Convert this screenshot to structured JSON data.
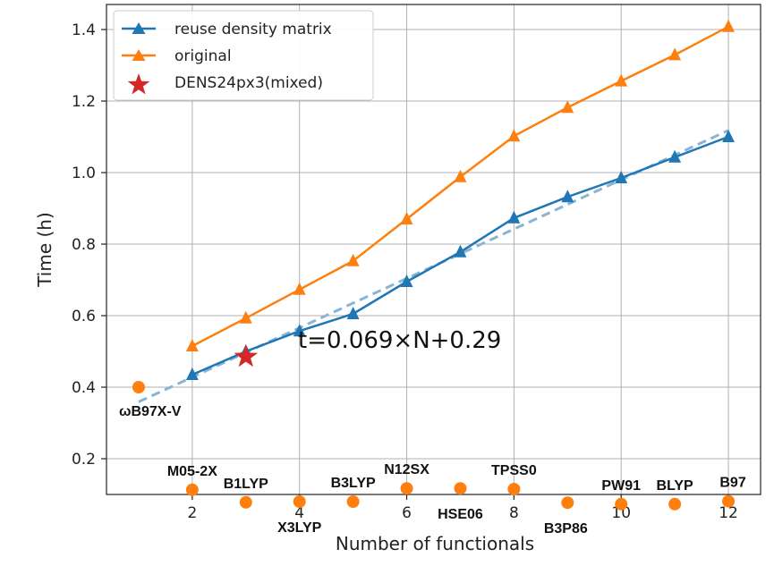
{
  "chart_data": {
    "type": "line",
    "xlabel": "Number of functionals",
    "ylabel": "Time (h)",
    "xlim": [
      0.4,
      12.6
    ],
    "ylim": [
      0.1,
      1.47
    ],
    "xticks": [
      2,
      4,
      6,
      8,
      10,
      12
    ],
    "yticks": [
      0.2,
      0.4,
      0.6,
      0.8,
      1.0,
      1.2,
      1.4
    ],
    "ytick_labels": [
      "0.2",
      "0.4",
      "0.6",
      "0.8",
      "1.0",
      "1.2",
      "1.4"
    ],
    "grid": true,
    "legend_position": "top-left",
    "series": [
      {
        "name": "reuse density matrix",
        "color": "#1f77b4",
        "marker": "triangle",
        "x": [
          2,
          3,
          4,
          5,
          6,
          7,
          8,
          9,
          10,
          11,
          12
        ],
        "y": [
          0.435,
          0.5,
          0.557,
          0.605,
          0.695,
          0.778,
          0.873,
          0.932,
          0.985,
          1.043,
          1.1
        ]
      },
      {
        "name": "original",
        "color": "#ff7f0e",
        "marker": "triangle",
        "x": [
          2,
          3,
          4,
          5,
          6,
          7,
          8,
          9,
          10,
          11,
          12
        ],
        "y": [
          0.515,
          0.593,
          0.673,
          0.753,
          0.87,
          0.988,
          1.102,
          1.182,
          1.256,
          1.329,
          1.408
        ]
      }
    ],
    "fit_line": {
      "color": "#89b4d6",
      "slope": 0.069,
      "intercept": 0.29,
      "x_range": [
        1,
        12
      ],
      "label": "t=0.069×N+0.29"
    },
    "star_point": {
      "name": "DENS24px3(mixed)",
      "color": "#d62728",
      "x": 3,
      "y": 0.485
    },
    "single_point": {
      "color": "#ff7f0e",
      "x": 1,
      "y": 0.4,
      "label": "ωB97X-V"
    },
    "functional_points": {
      "color": "#ff7f0e",
      "points": [
        {
          "x": 2,
          "y": 0.113,
          "label": "M05-2X"
        },
        {
          "x": 3,
          "y": 0.078,
          "label": "B1LYP"
        },
        {
          "x": 4,
          "y": 0.08,
          "label": "X3LYP"
        },
        {
          "x": 5,
          "y": 0.08,
          "label": "B3LYP"
        },
        {
          "x": 6,
          "y": 0.117,
          "label": "N12SX"
        },
        {
          "x": 7,
          "y": 0.117,
          "label": "HSE06"
        },
        {
          "x": 8,
          "y": 0.115,
          "label": "TPSS0"
        },
        {
          "x": 9,
          "y": 0.077,
          "label": "B3P86"
        },
        {
          "x": 10,
          "y": 0.073,
          "label": "PW91"
        },
        {
          "x": 11,
          "y": 0.073,
          "label": "BLYP"
        },
        {
          "x": 12,
          "y": 0.081,
          "label": "B97"
        }
      ]
    }
  }
}
